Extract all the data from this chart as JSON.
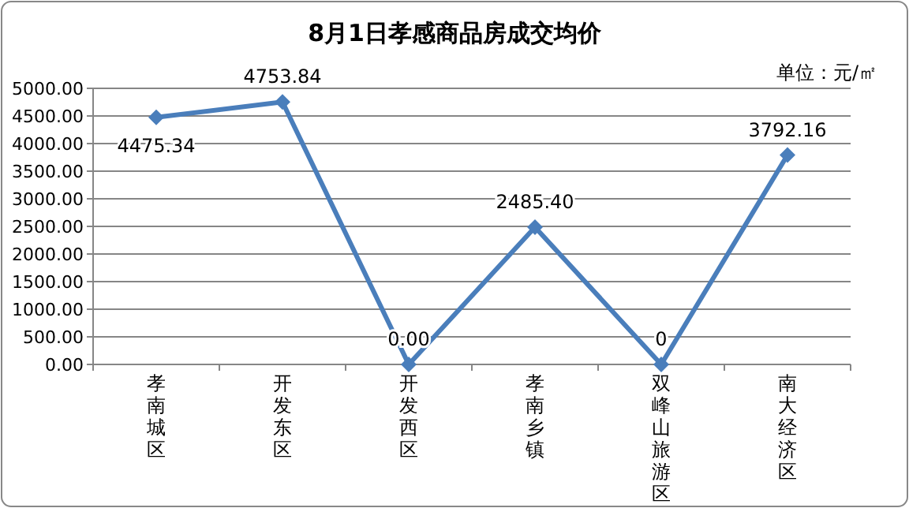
{
  "chart_data": {
    "type": "line",
    "title": "8月1日孝感商品房成交均价",
    "annotations": [
      "单位：元/㎡"
    ],
    "categories": [
      "孝南城区",
      "开发东区",
      "开发西区",
      "孝南乡镇",
      "双峰山旅游区",
      "南大经济区"
    ],
    "series": [
      {
        "color": "#4a7ebb",
        "values": [
          4475.34,
          4753.84,
          0,
          2485.4,
          0,
          3792.16
        ],
        "value_labels": [
          "4475.34",
          "4753.84",
          "0.00",
          "2485.40",
          "0",
          "3792.16"
        ]
      }
    ],
    "ylim": [
      0,
      5000
    ],
    "yticks": [
      {
        "value": 0,
        "label": "0.00"
      },
      {
        "value": 500,
        "label": "500.00"
      },
      {
        "value": 1000,
        "label": "1000.00"
      },
      {
        "value": 1500,
        "label": "1500.00"
      },
      {
        "value": 2000,
        "label": "2000.00"
      },
      {
        "value": 2500,
        "label": "2500.00"
      },
      {
        "value": 3000,
        "label": "3000.00"
      },
      {
        "value": 3500,
        "label": "3500.00"
      },
      {
        "value": 4000,
        "label": "4000.00"
      },
      {
        "value": 4500,
        "label": "4500.00"
      },
      {
        "value": 5000,
        "label": "5000.00"
      }
    ],
    "grid": "y",
    "marker": "diamond",
    "line_style": "solid"
  }
}
